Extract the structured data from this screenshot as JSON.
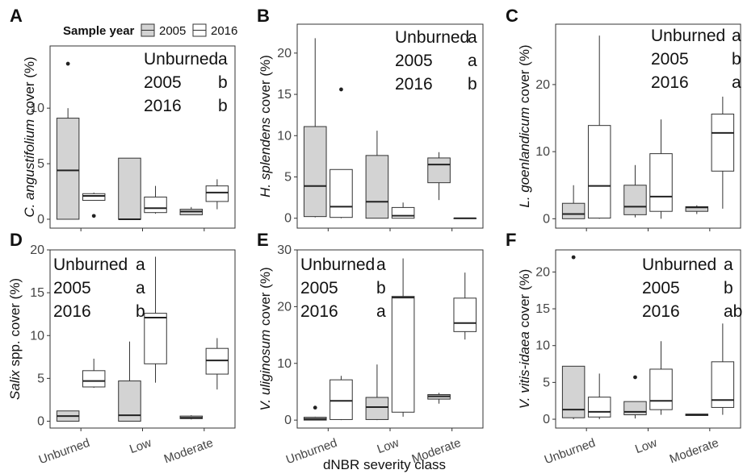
{
  "legend": {
    "title": "Sample year",
    "items": [
      {
        "label": "2005",
        "fill": "#d3d3d3"
      },
      {
        "label": "2016",
        "fill": "#ffffff"
      }
    ]
  },
  "x_axis_title": "dNBR severity class",
  "chart_data": [
    {
      "type": "boxplot",
      "panel": "A",
      "ylabel_italic": "C. angustifolium",
      "ylabel_rest": " cover (%)",
      "ylim": [
        -0.8,
        15.6
      ],
      "yticks": [
        0,
        5,
        10
      ],
      "categories": [
        "Unburned",
        "Low",
        "Moderate"
      ],
      "show_xticks": false,
      "boxes": [
        {
          "cat": 0,
          "year": "2005",
          "whislo": 0,
          "q1": 0,
          "med": 4.4,
          "q3": 9.1,
          "whishi": 10.0,
          "outliers": [
            14.0
          ]
        },
        {
          "cat": 0,
          "year": "2016",
          "whislo": 1.7,
          "q1": 1.7,
          "med": 2.1,
          "q3": 2.3,
          "whishi": 2.4,
          "outliers": [
            0.3
          ]
        },
        {
          "cat": 1,
          "year": "2005",
          "whislo": 0,
          "q1": 0,
          "med": 0,
          "q3": 5.5,
          "whishi": 5.5,
          "outliers": []
        },
        {
          "cat": 1,
          "year": "2016",
          "whislo": 0.5,
          "q1": 0.6,
          "med": 1.0,
          "q3": 2.0,
          "whishi": 3.0,
          "outliers": []
        },
        {
          "cat": 2,
          "year": "2005",
          "whislo": 0.4,
          "q1": 0.4,
          "med": 0.7,
          "q3": 0.9,
          "whishi": 1.1,
          "outliers": []
        },
        {
          "cat": 2,
          "year": "2016",
          "whislo": 0.9,
          "q1": 1.6,
          "med": 2.4,
          "q3": 3.0,
          "whishi": 3.6,
          "outliers": []
        }
      ],
      "annotations": [
        {
          "label": "Unburned",
          "letter": "a"
        },
        {
          "label": "2005",
          "letter": "b"
        },
        {
          "label": "2016",
          "letter": "b"
        }
      ]
    },
    {
      "type": "boxplot",
      "panel": "B",
      "ylabel_italic": "H. splendens",
      "ylabel_rest": " cover (%)",
      "ylim": [
        -1.2,
        23.5
      ],
      "yticks": [
        0,
        5,
        10,
        15,
        20
      ],
      "categories": [
        "Unburned",
        "Low",
        "Moderate"
      ],
      "show_xticks": false,
      "boxes": [
        {
          "cat": 0,
          "year": "2005",
          "whislo": 0.1,
          "q1": 0.2,
          "med": 3.9,
          "q3": 11.1,
          "whishi": 21.8,
          "outliers": []
        },
        {
          "cat": 0,
          "year": "2016",
          "whislo": 0,
          "q1": 0.1,
          "med": 1.4,
          "q3": 5.9,
          "whishi": 5.9,
          "outliers": [
            15.6
          ]
        },
        {
          "cat": 1,
          "year": "2005",
          "whislo": 0,
          "q1": 0,
          "med": 2.0,
          "q3": 7.6,
          "whishi": 10.6,
          "outliers": []
        },
        {
          "cat": 1,
          "year": "2016",
          "whislo": 0,
          "q1": 0,
          "med": 0.3,
          "q3": 1.3,
          "whishi": 1.9,
          "outliers": []
        },
        {
          "cat": 2,
          "year": "2005",
          "whislo": 2.2,
          "q1": 4.3,
          "med": 6.5,
          "q3": 7.3,
          "whishi": 8.0,
          "outliers": []
        },
        {
          "cat": 2,
          "year": "2016",
          "whislo": 0,
          "q1": 0,
          "med": 0,
          "q3": 0,
          "whishi": 0,
          "outliers": []
        }
      ],
      "annotations": [
        {
          "label": "Unburned",
          "letter": "a"
        },
        {
          "label": "2005",
          "letter": "a"
        },
        {
          "label": "2016",
          "letter": "b"
        }
      ]
    },
    {
      "type": "boxplot",
      "panel": "C",
      "ylabel_italic": "L. goenlandicum",
      "ylabel_rest": " cover (%)",
      "ylim": [
        -1.4,
        29.0
      ],
      "yticks": [
        0,
        10,
        20
      ],
      "categories": [
        "Unburned",
        "Low",
        "Moderate"
      ],
      "show_xticks": false,
      "boxes": [
        {
          "cat": 0,
          "year": "2005",
          "whislo": 0,
          "q1": 0,
          "med": 0.7,
          "q3": 2.3,
          "whishi": 5.0,
          "outliers": []
        },
        {
          "cat": 0,
          "year": "2016",
          "whislo": 0,
          "q1": 0.1,
          "med": 4.9,
          "q3": 13.9,
          "whishi": 27.3,
          "outliers": []
        },
        {
          "cat": 1,
          "year": "2005",
          "whislo": 0.2,
          "q1": 0.6,
          "med": 1.8,
          "q3": 5.0,
          "whishi": 8.0,
          "outliers": []
        },
        {
          "cat": 1,
          "year": "2016",
          "whislo": 0,
          "q1": 1.1,
          "med": 3.3,
          "q3": 9.7,
          "whishi": 14.8,
          "outliers": []
        },
        {
          "cat": 2,
          "year": "2005",
          "whislo": 0.7,
          "q1": 1.1,
          "med": 1.7,
          "q3": 1.8,
          "whishi": 2.0,
          "outliers": []
        },
        {
          "cat": 2,
          "year": "2016",
          "whislo": 1.5,
          "q1": 7.1,
          "med": 12.8,
          "q3": 15.6,
          "whishi": 18.2,
          "outliers": []
        }
      ],
      "annotations": [
        {
          "label": "Unburned",
          "letter": "a"
        },
        {
          "label": "2005",
          "letter": "b"
        },
        {
          "label": "2016",
          "letter": "a"
        }
      ]
    },
    {
      "type": "boxplot",
      "panel": "D",
      "ylabel_italic": "Salix",
      "ylabel_rest": " spp. cover (%)",
      "ylim": [
        -0.8,
        20.0
      ],
      "yticks": [
        0,
        5,
        10,
        15,
        20
      ],
      "categories": [
        "Unburned",
        "Low",
        "Moderate"
      ],
      "show_xticks": true,
      "boxes": [
        {
          "cat": 0,
          "year": "2005",
          "whislo": 0,
          "q1": 0,
          "med": 0.6,
          "q3": 1.2,
          "whishi": 1.2,
          "outliers": []
        },
        {
          "cat": 0,
          "year": "2016",
          "whislo": 3.9,
          "q1": 4.0,
          "med": 4.7,
          "q3": 5.9,
          "whishi": 7.3,
          "outliers": []
        },
        {
          "cat": 1,
          "year": "2005",
          "whislo": 0,
          "q1": 0,
          "med": 0.7,
          "q3": 4.7,
          "whishi": 9.3,
          "outliers": []
        },
        {
          "cat": 1,
          "year": "2016",
          "whislo": 4.5,
          "q1": 6.7,
          "med": 12.1,
          "q3": 12.6,
          "whishi": 19.2,
          "outliers": []
        },
        {
          "cat": 2,
          "year": "2005",
          "whislo": 0.2,
          "q1": 0.3,
          "med": 0.4,
          "q3": 0.6,
          "whishi": 0.7,
          "outliers": []
        },
        {
          "cat": 2,
          "year": "2016",
          "whislo": 3.7,
          "q1": 5.5,
          "med": 7.1,
          "q3": 8.5,
          "whishi": 9.7,
          "outliers": []
        }
      ],
      "annotations": [
        {
          "label": "Unburned",
          "letter": "a"
        },
        {
          "label": "2005",
          "letter": "a"
        },
        {
          "label": "2016",
          "letter": "b"
        }
      ]
    },
    {
      "type": "boxplot",
      "panel": "E",
      "ylabel_italic": "V. uliginosum",
      "ylabel_rest": " cover (%)",
      "ylim": [
        -1.4,
        30.0
      ],
      "yticks": [
        0,
        10,
        20,
        30
      ],
      "categories": [
        "Unburned",
        "Low",
        "Moderate"
      ],
      "show_xticks": true,
      "boxes": [
        {
          "cat": 0,
          "year": "2005",
          "whislo": 0,
          "q1": 0,
          "med": 0.2,
          "q3": 0.5,
          "whishi": 0.6,
          "outliers": [
            2.2
          ]
        },
        {
          "cat": 0,
          "year": "2016",
          "whislo": 0,
          "q1": 0.1,
          "med": 3.4,
          "q3": 7.1,
          "whishi": 7.8,
          "outliers": []
        },
        {
          "cat": 1,
          "year": "2005",
          "whislo": 0,
          "q1": 0.1,
          "med": 2.3,
          "q3": 4.0,
          "whishi": 9.8,
          "outliers": []
        },
        {
          "cat": 1,
          "year": "2016",
          "whislo": 0.6,
          "q1": 1.4,
          "med": 21.6,
          "q3": 21.8,
          "whishi": 28.5,
          "outliers": []
        },
        {
          "cat": 2,
          "year": "2005",
          "whislo": 2.9,
          "q1": 3.7,
          "med": 4.2,
          "q3": 4.5,
          "whishi": 4.8,
          "outliers": []
        },
        {
          "cat": 2,
          "year": "2016",
          "whislo": 14.2,
          "q1": 15.6,
          "med": 17.1,
          "q3": 21.5,
          "whishi": 26.0,
          "outliers": []
        }
      ],
      "annotations": [
        {
          "label": "Unburned",
          "letter": "a"
        },
        {
          "label": "2005",
          "letter": "b"
        },
        {
          "label": "2016",
          "letter": "a"
        }
      ]
    },
    {
      "type": "boxplot",
      "panel": "F",
      "ylabel_italic": "V. vitis-idaea",
      "ylabel_rest": " cover (%)",
      "ylim": [
        -1.2,
        23.0
      ],
      "yticks": [
        0,
        5,
        10,
        15,
        20
      ],
      "categories": [
        "Unburned",
        "Low",
        "Moderate"
      ],
      "show_xticks": true,
      "boxes": [
        {
          "cat": 0,
          "year": "2005",
          "whislo": 0,
          "q1": 0.2,
          "med": 1.3,
          "q3": 7.2,
          "whishi": 7.2,
          "outliers": [
            22.0
          ]
        },
        {
          "cat": 0,
          "year": "2016",
          "whislo": 0,
          "q1": 0.3,
          "med": 1.0,
          "q3": 3.0,
          "whishi": 6.2,
          "outliers": []
        },
        {
          "cat": 1,
          "year": "2005",
          "whislo": 0.1,
          "q1": 0.6,
          "med": 1.0,
          "q3": 2.4,
          "whishi": 2.4,
          "outliers": [
            5.7
          ]
        },
        {
          "cat": 1,
          "year": "2016",
          "whislo": 0.6,
          "q1": 1.3,
          "med": 2.5,
          "q3": 6.8,
          "whishi": 10.6,
          "outliers": []
        },
        {
          "cat": 2,
          "year": "2005",
          "whislo": 0.5,
          "q1": 0.5,
          "med": 0.6,
          "q3": 0.7,
          "whishi": 0.7,
          "outliers": []
        },
        {
          "cat": 2,
          "year": "2016",
          "whislo": 0.6,
          "q1": 1.6,
          "med": 2.6,
          "q3": 7.8,
          "whishi": 13.0,
          "outliers": []
        }
      ],
      "annotations": [
        {
          "label": "Unburned",
          "letter": "a"
        },
        {
          "label": "2005",
          "letter": "b"
        },
        {
          "label": "2016",
          "letter": "ab"
        }
      ]
    }
  ]
}
